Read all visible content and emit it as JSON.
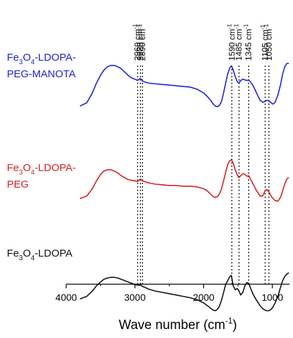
{
  "chart_data": {
    "type": "line",
    "title": "",
    "xlabel_main": "Wave number  (cm",
    "xlabel_sup": "-1",
    "xlabel_close": ")",
    "xlim": [
      4000,
      750
    ],
    "x_reversed": true,
    "xticks": [
      4000,
      3000,
      2000,
      1000
    ],
    "xtick_labels": [
      "4000",
      "3000",
      "2000",
      "1000"
    ],
    "y_axis_shown": false,
    "grid": false,
    "reference_lines": [
      {
        "wavenumber": 2960,
        "value": "2960",
        "unit": "cm",
        "sup": "-1"
      },
      {
        "wavenumber": 2920,
        "value": "2920",
        "unit": "cm",
        "sup": "-1"
      },
      {
        "wavenumber": 2890,
        "value": "2890",
        "unit": "cm",
        "sup": "-1"
      },
      {
        "wavenumber": 1590,
        "value": "1590",
        "unit": "cm",
        "sup": "-1"
      },
      {
        "wavenumber": 1485,
        "value": "1485",
        "unit": "cm",
        "sup": "-1"
      },
      {
        "wavenumber": 1345,
        "value": "1345",
        "unit": "cm",
        "sup": "-1"
      },
      {
        "wavenumber": 1105,
        "value": "1105",
        "unit": "cm",
        "sup": "-1"
      },
      {
        "wavenumber": 1050,
        "value": "1050",
        "unit": "cm",
        "sup": "-1"
      }
    ],
    "series": [
      {
        "label_lines": [
          [
            "Fe",
            "3",
            "O",
            "4",
            "-LDOPA-"
          ],
          [
            "PEG-MANOTA"
          ]
        ],
        "color": "#1f1fd6",
        "x": [
          3800,
          3700,
          3620,
          3560,
          3500,
          3450,
          3400,
          3350,
          3300,
          3250,
          3200,
          3150,
          3100,
          3050,
          3000,
          2960,
          2940,
          2920,
          2900,
          2890,
          2860,
          2800,
          2700,
          2600,
          2500,
          2400,
          2300,
          2200,
          2100,
          2000,
          1950,
          1900,
          1860,
          1830,
          1800,
          1770,
          1740,
          1710,
          1680,
          1650,
          1620,
          1600,
          1590,
          1570,
          1540,
          1510,
          1485,
          1460,
          1430,
          1400,
          1370,
          1345,
          1320,
          1280,
          1230,
          1180,
          1140,
          1105,
          1080,
          1050,
          1020,
          990,
          960,
          920,
          880,
          850,
          820,
          790,
          760
        ],
        "y": [
          0.35,
          0.4,
          0.55,
          0.7,
          0.82,
          0.9,
          0.95,
          0.97,
          0.97,
          0.95,
          0.92,
          0.87,
          0.82,
          0.78,
          0.76,
          0.74,
          0.76,
          0.77,
          0.75,
          0.73,
          0.72,
          0.7,
          0.69,
          0.68,
          0.67,
          0.66,
          0.65,
          0.64,
          0.61,
          0.55,
          0.5,
          0.44,
          0.38,
          0.35,
          0.34,
          0.36,
          0.42,
          0.55,
          0.7,
          0.84,
          0.93,
          0.96,
          0.95,
          0.9,
          0.8,
          0.72,
          0.7,
          0.74,
          0.76,
          0.75,
          0.74,
          0.75,
          0.72,
          0.66,
          0.55,
          0.44,
          0.41,
          0.42,
          0.44,
          0.43,
          0.4,
          0.38,
          0.41,
          0.52,
          0.68,
          0.84,
          0.95,
          1.0,
          1.0
        ]
      },
      {
        "label_lines": [
          [
            "Fe",
            "3",
            "O",
            "4",
            "-LDOPA-"
          ],
          [
            "PEG"
          ]
        ],
        "color": "#d42020",
        "x": [
          3800,
          3700,
          3620,
          3560,
          3500,
          3450,
          3400,
          3350,
          3300,
          3250,
          3200,
          3150,
          3100,
          3050,
          3000,
          2960,
          2940,
          2920,
          2900,
          2890,
          2860,
          2800,
          2700,
          2600,
          2500,
          2400,
          2300,
          2200,
          2100,
          2000,
          1950,
          1900,
          1860,
          1830,
          1800,
          1770,
          1740,
          1710,
          1680,
          1650,
          1620,
          1600,
          1590,
          1570,
          1540,
          1510,
          1485,
          1460,
          1430,
          1400,
          1370,
          1345,
          1320,
          1280,
          1230,
          1180,
          1140,
          1105,
          1080,
          1050,
          1020,
          990,
          960,
          920,
          880,
          850,
          820,
          790,
          760
        ],
        "y": [
          0.18,
          0.22,
          0.33,
          0.45,
          0.55,
          0.6,
          0.62,
          0.62,
          0.6,
          0.57,
          0.53,
          0.5,
          0.47,
          0.46,
          0.45,
          0.44,
          0.46,
          0.48,
          0.46,
          0.45,
          0.44,
          0.42,
          0.4,
          0.39,
          0.38,
          0.38,
          0.37,
          0.37,
          0.36,
          0.33,
          0.3,
          0.25,
          0.21,
          0.2,
          0.21,
          0.25,
          0.33,
          0.45,
          0.58,
          0.7,
          0.76,
          0.77,
          0.76,
          0.72,
          0.62,
          0.54,
          0.5,
          0.53,
          0.56,
          0.55,
          0.52,
          0.53,
          0.48,
          0.4,
          0.3,
          0.22,
          0.22,
          0.3,
          0.32,
          0.28,
          0.22,
          0.18,
          0.15,
          0.14,
          0.2,
          0.3,
          0.4,
          0.48,
          0.5
        ]
      },
      {
        "label_lines": [
          [
            "Fe",
            "3",
            "O",
            "4",
            "-LDOPA"
          ]
        ],
        "color": "#111111",
        "x": [
          3800,
          3700,
          3620,
          3560,
          3500,
          3450,
          3400,
          3350,
          3300,
          3250,
          3200,
          3150,
          3100,
          3050,
          3000,
          2960,
          2940,
          2920,
          2900,
          2890,
          2860,
          2800,
          2700,
          2600,
          2500,
          2400,
          2300,
          2200,
          2100,
          2000,
          1950,
          1900,
          1860,
          1830,
          1800,
          1770,
          1740,
          1710,
          1680,
          1650,
          1620,
          1600,
          1590,
          1570,
          1540,
          1510,
          1485,
          1460,
          1430,
          1400,
          1370,
          1345,
          1320,
          1280,
          1230,
          1180,
          1140,
          1105,
          1080,
          1050,
          1020,
          990,
          960,
          920,
          880,
          850,
          820,
          790,
          760
        ],
        "y": [
          -0.12,
          -0.08,
          0.0,
          0.08,
          0.14,
          0.18,
          0.2,
          0.21,
          0.21,
          0.2,
          0.18,
          0.16,
          0.14,
          0.12,
          0.1,
          0.09,
          0.09,
          0.09,
          0.08,
          0.07,
          0.06,
          0.03,
          0.0,
          -0.02,
          -0.04,
          -0.06,
          -0.08,
          -0.1,
          -0.13,
          -0.18,
          -0.22,
          -0.26,
          -0.29,
          -0.3,
          -0.28,
          -0.23,
          -0.14,
          -0.02,
          0.1,
          0.16,
          0.22,
          0.24,
          0.2,
          0.08,
          0.02,
          0.04,
          0.0,
          -0.06,
          -0.02,
          0.08,
          0.13,
          0.12,
          0.05,
          -0.05,
          -0.14,
          -0.22,
          -0.27,
          -0.29,
          -0.3,
          -0.3,
          -0.28,
          -0.24,
          -0.18,
          -0.08,
          0.06,
          0.16,
          0.22,
          0.26,
          0.28
        ]
      }
    ]
  }
}
